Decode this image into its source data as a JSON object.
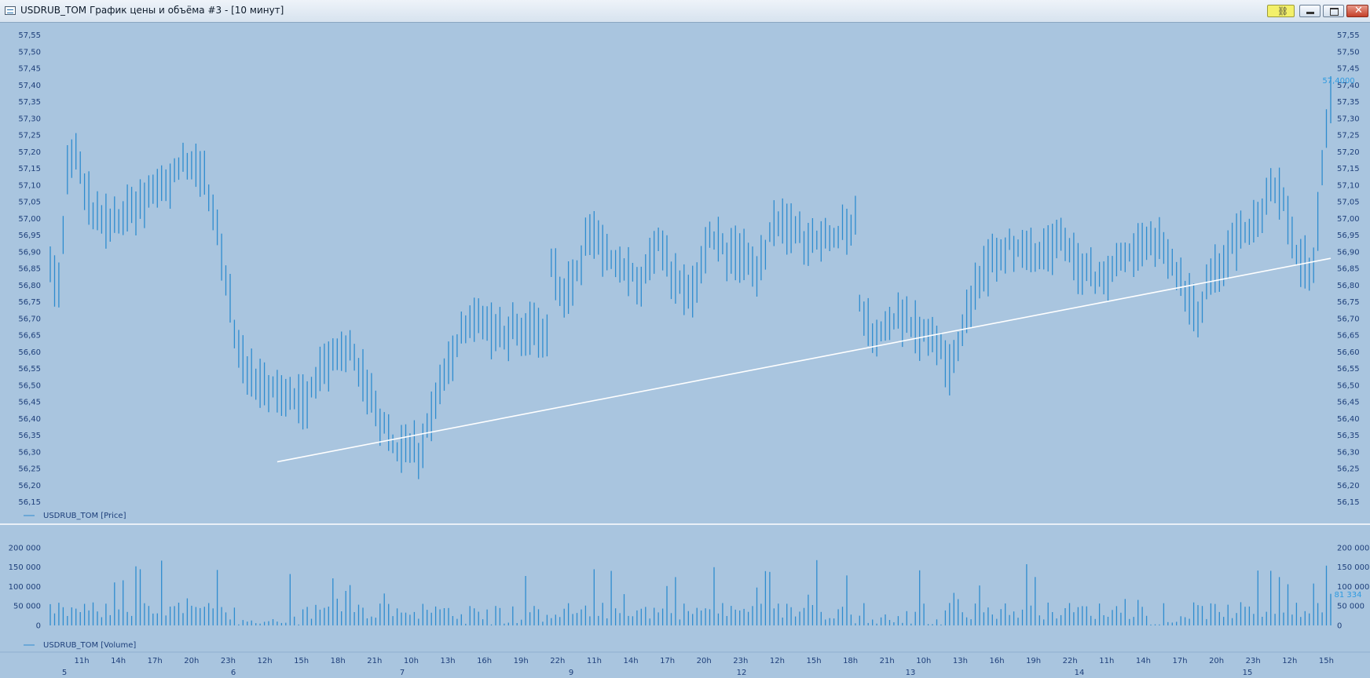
{
  "window": {
    "title": "USDRUB_TOM График цены и объёма #3 - [10 минут]",
    "link_icon": "chain-link-icon",
    "minimize_icon": "minimize-icon",
    "maximize_icon": "maximize-icon",
    "close_icon": "close-icon"
  },
  "colors": {
    "background": "#a9c5df",
    "series": "#2e8ccf",
    "trendline": "#ffffff",
    "axis_text": "#1e3f7a",
    "current_value": "#2e9be0",
    "separator": "#ffffff"
  },
  "chart_data": [
    {
      "type": "line",
      "style": "vertical high-low bars",
      "legend": "USDRUB_TOM [Price]",
      "ylim": [
        56.13,
        57.57
      ],
      "y_ticks": [
        "57,55",
        "57,50",
        "57,45",
        "57,40",
        "57,35",
        "57,30",
        "57,25",
        "57,20",
        "57,15",
        "57,10",
        "57,05",
        "57,00",
        "56,95",
        "56,90",
        "56,85",
        "56,80",
        "56,75",
        "56,70",
        "56,65",
        "56,60",
        "56,55",
        "56,50",
        "56,45",
        "56,40",
        "56,35",
        "56,30",
        "56,25",
        "56,20",
        "56,15"
      ],
      "current_value_label": "57,4000",
      "current_value": 57.4,
      "bar_count": 300,
      "anchors": [
        [
          0,
          56.85
        ],
        [
          2,
          56.8
        ],
        [
          4,
          57.15
        ],
        [
          6,
          57.18
        ],
        [
          10,
          57.02
        ],
        [
          14,
          56.98
        ],
        [
          20,
          57.03
        ],
        [
          27,
          57.1
        ],
        [
          31,
          57.16
        ],
        [
          36,
          57.14
        ],
        [
          40,
          56.9
        ],
        [
          44,
          56.6
        ],
        [
          47,
          56.52
        ],
        [
          52,
          56.5
        ],
        [
          57,
          56.47
        ],
        [
          60,
          56.45
        ],
        [
          63,
          56.55
        ],
        [
          67,
          56.58
        ],
        [
          70,
          56.62
        ],
        [
          73,
          56.52
        ],
        [
          77,
          56.4
        ],
        [
          81,
          56.3
        ],
        [
          84,
          56.32
        ],
        [
          86,
          56.3
        ],
        [
          89,
          56.42
        ],
        [
          91,
          56.52
        ],
        [
          94,
          56.58
        ],
        [
          97,
          56.68
        ],
        [
          100,
          56.7
        ],
        [
          104,
          56.65
        ],
        [
          108,
          56.66
        ],
        [
          112,
          56.68
        ],
        [
          116,
          56.65
        ],
        [
          117,
          56.85
        ],
        [
          120,
          56.78
        ],
        [
          123,
          56.84
        ],
        [
          126,
          56.97
        ],
        [
          130,
          56.88
        ],
        [
          135,
          56.85
        ],
        [
          138,
          56.8
        ],
        [
          142,
          56.93
        ],
        [
          146,
          56.82
        ],
        [
          150,
          56.77
        ],
        [
          154,
          56.95
        ],
        [
          158,
          56.9
        ],
        [
          162,
          56.88
        ],
        [
          165,
          56.82
        ],
        [
          168,
          56.96
        ],
        [
          172,
          56.98
        ],
        [
          176,
          56.94
        ],
        [
          180,
          56.93
        ],
        [
          184,
          56.95
        ],
        [
          188,
          57.0
        ],
        [
          189,
          56.75
        ],
        [
          192,
          56.65
        ],
        [
          195,
          56.68
        ],
        [
          199,
          56.7
        ],
        [
          203,
          56.66
        ],
        [
          206,
          56.65
        ],
        [
          208,
          56.6
        ],
        [
          210,
          56.55
        ],
        [
          212,
          56.63
        ],
        [
          215,
          56.75
        ],
        [
          218,
          56.84
        ],
        [
          221,
          56.88
        ],
        [
          224,
          56.93
        ],
        [
          228,
          56.88
        ],
        [
          232,
          56.9
        ],
        [
          236,
          56.93
        ],
        [
          240,
          56.85
        ],
        [
          244,
          56.82
        ],
        [
          248,
          56.83
        ],
        [
          252,
          56.9
        ],
        [
          256,
          56.95
        ],
        [
          259,
          56.92
        ],
        [
          262,
          56.85
        ],
        [
          265,
          56.78
        ],
        [
          268,
          56.72
        ],
        [
          271,
          56.82
        ],
        [
          274,
          56.88
        ],
        [
          278,
          56.95
        ],
        [
          282,
          56.98
        ],
        [
          285,
          57.1
        ],
        [
          288,
          57.05
        ],
        [
          291,
          56.9
        ],
        [
          294,
          56.85
        ],
        [
          297,
          56.88
        ]
      ]
    },
    {
      "type": "bar",
      "legend": "USDRUB_TOM [Volume]",
      "ylim": [
        0,
        220000
      ],
      "y_ticks": [
        "200 000",
        "150 000",
        "100 000",
        "50 000",
        "0"
      ],
      "current_value_label": "81 334",
      "current_value": 81334
    }
  ],
  "trendline": {
    "from": {
      "session_label": "6",
      "time_label": "15h",
      "value": 56.27
    },
    "to": {
      "session_label": "15",
      "value": 56.88
    }
  },
  "x_axis": {
    "hour_labels": [
      "11h",
      "14h",
      "17h",
      "20h",
      "23h",
      "12h",
      "15h",
      "18h",
      "21h",
      "10h",
      "13h",
      "16h",
      "19h",
      "22h",
      "11h",
      "14h",
      "17h",
      "20h",
      "23h",
      "12h",
      "15h",
      "18h",
      "21h",
      "10h",
      "13h",
      "16h",
      "19h",
      "22h",
      "11h",
      "14h",
      "17h",
      "20h",
      "23h",
      "12h",
      "15h"
    ],
    "day_labels": [
      "5",
      "6",
      "7",
      "9",
      "12",
      "13",
      "14",
      "15"
    ]
  }
}
